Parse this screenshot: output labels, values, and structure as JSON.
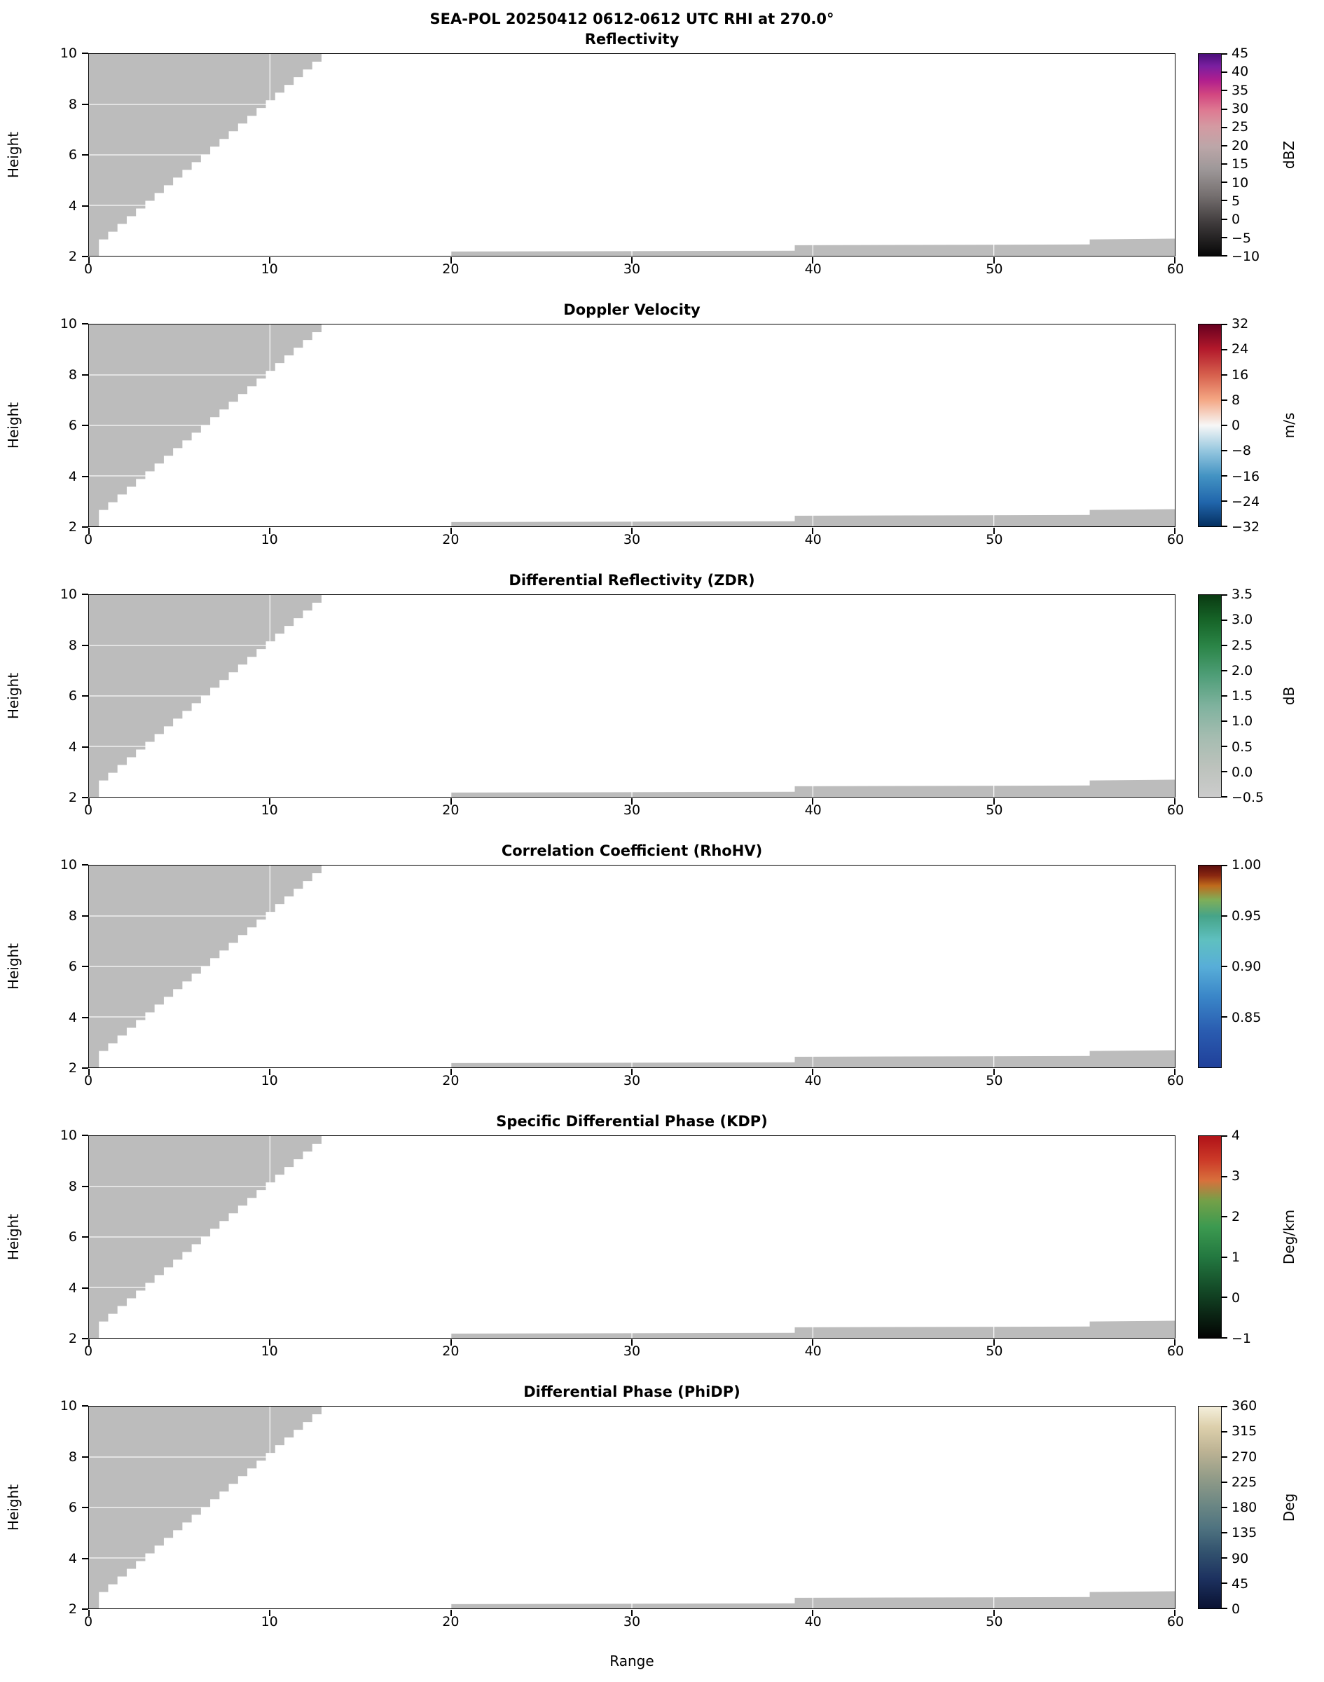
{
  "chart_data": {
    "type": "heatmap",
    "title": "SEA-POL 20250412 0612-0612 UTC RHI at 270.0°",
    "subtitle_note": "Six-panel polarimetric radar RHI; all displayed echo regions are uniform gray (masked / below-threshold data)",
    "mask_color": "#bcbcbc",
    "grid_color": "#ffffff",
    "x": {
      "label": "Range",
      "range": [
        0,
        60
      ],
      "ticks": [
        0,
        10,
        20,
        30,
        40,
        50,
        60
      ],
      "tick_labels": [
        "0",
        "10",
        "20",
        "30",
        "40",
        "50",
        "60"
      ],
      "grid": [
        10,
        20,
        30,
        40,
        50
      ]
    },
    "y": {
      "label": "Height",
      "range": [
        2,
        10
      ],
      "ticks": [
        2,
        4,
        6,
        8,
        10
      ],
      "tick_labels": [
        "2",
        "4",
        "6",
        "8",
        "10"
      ],
      "grid": [
        4,
        6,
        8
      ]
    },
    "mask_regions": {
      "wedge": {
        "comment": "stepped gray wedge upper-left: data coverage area",
        "x_left": 0.0,
        "y_top": 10.0,
        "x_tip": 12.85,
        "x_base": 0.55,
        "y_base": 2.65,
        "steps": 24,
        "tail": [
          [
            0.55,
            2.0
          ],
          [
            0.0,
            2.0
          ]
        ]
      },
      "strip": [
        [
          20.0,
          2.0
        ],
        [
          20.0,
          2.17
        ],
        [
          39.0,
          2.2
        ],
        [
          39.0,
          2.42
        ],
        [
          55.3,
          2.45
        ],
        [
          55.3,
          2.65
        ],
        [
          60.0,
          2.68
        ],
        [
          60.0,
          2.0
        ]
      ]
    },
    "panels": [
      {
        "title": "Reflectivity",
        "unit": "dBZ",
        "cb_max": 45,
        "cb_min": -10,
        "cb_tick_values": [
          45,
          40,
          35,
          30,
          25,
          20,
          15,
          10,
          5,
          0,
          -5,
          -10
        ],
        "cb_tick_labels": [
          "45",
          "40",
          "35",
          "30",
          "25",
          "20",
          "15",
          "10",
          "5",
          "0",
          "−5",
          "−10"
        ],
        "gradient": [
          {
            "p": 0,
            "c": "#4b0f7a"
          },
          {
            "p": 6,
            "c": "#7a1fa0"
          },
          {
            "p": 13,
            "c": "#b01e8e"
          },
          {
            "p": 20,
            "c": "#d24680"
          },
          {
            "p": 28,
            "c": "#de7a92"
          },
          {
            "p": 36,
            "c": "#d49aa2"
          },
          {
            "p": 46,
            "c": "#bca6a8"
          },
          {
            "p": 57,
            "c": "#9e9899"
          },
          {
            "p": 70,
            "c": "#767070"
          },
          {
            "p": 84,
            "c": "#3e3a3b"
          },
          {
            "p": 100,
            "c": "#070707"
          }
        ]
      },
      {
        "title": "Doppler Velocity",
        "unit": "m/s",
        "cb_max": 32,
        "cb_min": -32,
        "cb_tick_values": [
          32,
          24,
          16,
          8,
          0,
          -8,
          -16,
          -24,
          -32
        ],
        "cb_tick_labels": [
          "32",
          "24",
          "16",
          "8",
          "0",
          "−8",
          "−16",
          "−24",
          "−32"
        ],
        "gradient": [
          {
            "p": 0,
            "c": "#67001f"
          },
          {
            "p": 12,
            "c": "#b2182b"
          },
          {
            "p": 25,
            "c": "#d6604d"
          },
          {
            "p": 37,
            "c": "#f4a582"
          },
          {
            "p": 50,
            "c": "#f7f7f7"
          },
          {
            "p": 63,
            "c": "#92c5de"
          },
          {
            "p": 75,
            "c": "#4393c3"
          },
          {
            "p": 88,
            "c": "#2166ac"
          },
          {
            "p": 100,
            "c": "#053061"
          }
        ]
      },
      {
        "title": "Differential Reflectivity (ZDR)",
        "unit": "dB",
        "cb_max": 3.5,
        "cb_min": -0.5,
        "cb_tick_values": [
          3.5,
          3.0,
          2.5,
          2.0,
          1.5,
          1.0,
          0.5,
          0.0,
          -0.5
        ],
        "cb_tick_labels": [
          "3.5",
          "3.0",
          "2.5",
          "2.0",
          "1.5",
          "1.0",
          "0.5",
          "0.0",
          "−0.5"
        ],
        "gradient": [
          {
            "p": 0,
            "c": "#0a3a12"
          },
          {
            "p": 12,
            "c": "#166327"
          },
          {
            "p": 25,
            "c": "#2a8446"
          },
          {
            "p": 40,
            "c": "#4f9e78"
          },
          {
            "p": 55,
            "c": "#7fb29e"
          },
          {
            "p": 70,
            "c": "#a4bcb0"
          },
          {
            "p": 85,
            "c": "#bcc2bc"
          },
          {
            "p": 100,
            "c": "#cccccc"
          }
        ]
      },
      {
        "title": "Correlation Coefficient (RhoHV)",
        "unit": "",
        "cb_max": 1.0,
        "cb_min": 0.8,
        "cb_tick_values": [
          1.0,
          0.95,
          0.9,
          0.85
        ],
        "cb_tick_labels": [
          "1.00",
          "0.95",
          "0.90",
          "0.85"
        ],
        "gradient": [
          {
            "p": 0,
            "c": "#5a0d0d"
          },
          {
            "p": 5,
            "c": "#8a2810"
          },
          {
            "p": 10,
            "c": "#bf6a1c"
          },
          {
            "p": 17,
            "c": "#7fae58"
          },
          {
            "p": 25,
            "c": "#46a488"
          },
          {
            "p": 37,
            "c": "#5fc0c0"
          },
          {
            "p": 50,
            "c": "#58aed8"
          },
          {
            "p": 65,
            "c": "#3a86c8"
          },
          {
            "p": 82,
            "c": "#2a5cb0"
          },
          {
            "p": 100,
            "c": "#20409a"
          }
        ]
      },
      {
        "title": "Specific Differential Phase (KDP)",
        "unit": "Deg/km",
        "cb_max": 4,
        "cb_min": -1,
        "cb_tick_values": [
          4,
          3,
          2,
          1,
          0,
          -1
        ],
        "cb_tick_labels": [
          "4",
          "3",
          "2",
          "1",
          "0",
          "−1"
        ],
        "gradient": [
          {
            "p": 0,
            "c": "#b01218"
          },
          {
            "p": 12,
            "c": "#cc3a28"
          },
          {
            "p": 22,
            "c": "#d8703c"
          },
          {
            "p": 32,
            "c": "#74a048"
          },
          {
            "p": 45,
            "c": "#3c9a50"
          },
          {
            "p": 60,
            "c": "#237840"
          },
          {
            "p": 78,
            "c": "#124424"
          },
          {
            "p": 100,
            "c": "#030303"
          }
        ]
      },
      {
        "title": "Differential Phase (PhiDP)",
        "unit": "Deg",
        "cb_max": 360,
        "cb_min": 0,
        "cb_tick_values": [
          360,
          315,
          270,
          225,
          180,
          135,
          90,
          45,
          0
        ],
        "cb_tick_labels": [
          "360",
          "315",
          "270",
          "225",
          "180",
          "135",
          "90",
          "45",
          "0"
        ],
        "gradient": [
          {
            "p": 0,
            "c": "#f4efdc"
          },
          {
            "p": 10,
            "c": "#ddd0ac"
          },
          {
            "p": 22,
            "c": "#bdb394"
          },
          {
            "p": 35,
            "c": "#939c88"
          },
          {
            "p": 48,
            "c": "#6d8884"
          },
          {
            "p": 60,
            "c": "#4f7380"
          },
          {
            "p": 72,
            "c": "#32526e"
          },
          {
            "p": 85,
            "c": "#1d3260"
          },
          {
            "p": 100,
            "c": "#0a1232"
          }
        ]
      }
    ]
  }
}
